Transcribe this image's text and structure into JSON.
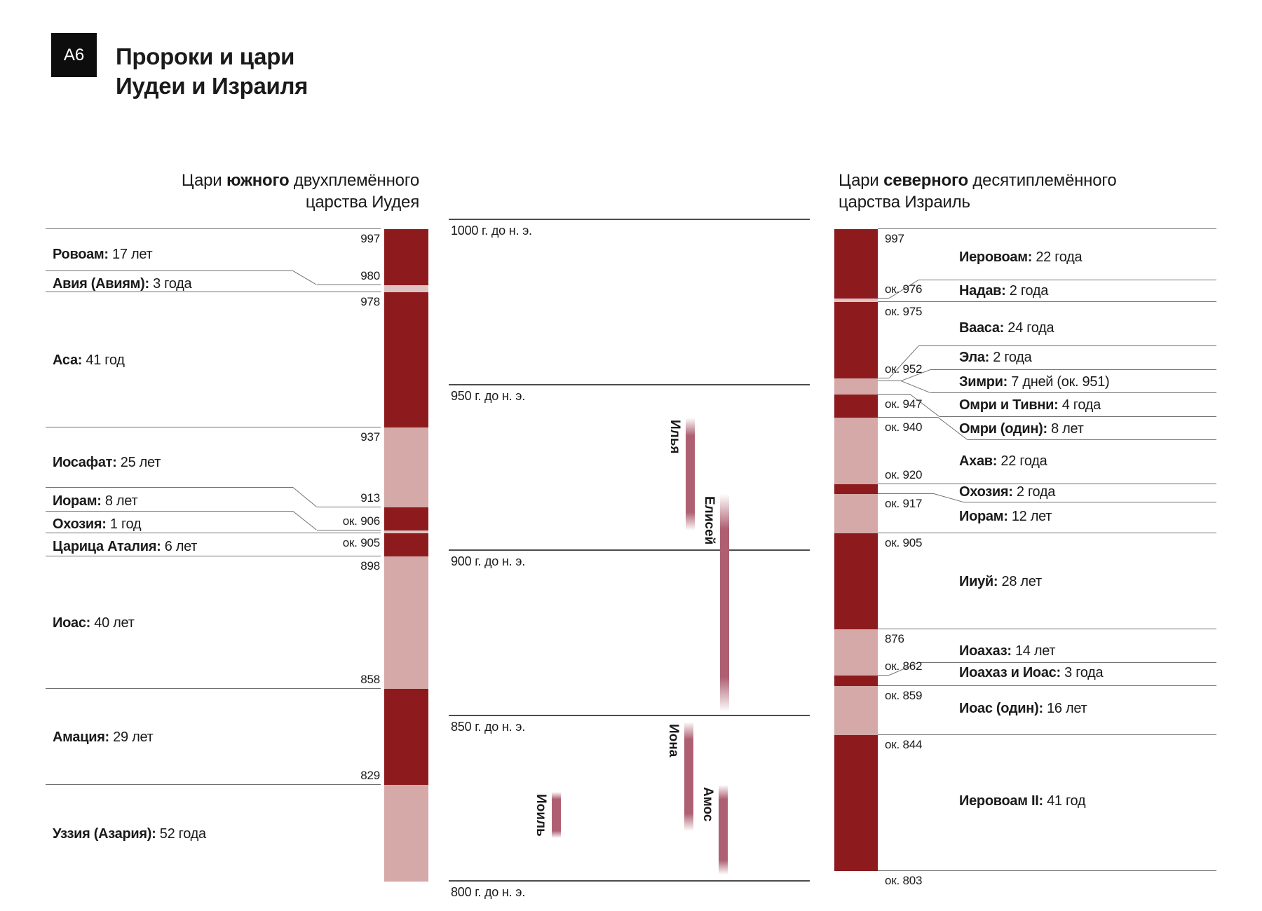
{
  "badge": "А6",
  "title": {
    "line1": "Пророки и цари",
    "line2": "Иудеи и Израиля"
  },
  "judah": {
    "header": {
      "pre": "Цари ",
      "bold": "южного",
      "post": " двухплемённого",
      "line2": "царства Иудея"
    },
    "kings": [
      {
        "name": "Ровоам:",
        "info": "17 лет",
        "year_label": "997",
        "year": 997,
        "end_year": 980,
        "shade": "dark"
      },
      {
        "name": "Авия (Авиям):",
        "info": "3 года",
        "year_label": "980",
        "year": 980,
        "end_year": 978,
        "shade": "light_thin"
      },
      {
        "name": "Аса:",
        "info": "41 год",
        "year_label": "978",
        "year": 978,
        "end_year": 937,
        "shade": "dark"
      },
      {
        "name": "Иосафат:",
        "info": "25 лет",
        "year_label": "937",
        "year": 937,
        "end_year": 913,
        "shade": "light"
      },
      {
        "name": "Иорам:",
        "info": "8 лет",
        "year_label": "913",
        "year": 913,
        "end_year": 906,
        "shade": "dark"
      },
      {
        "name": "Охозия:",
        "info": "1 год",
        "year_label": "ок. 906",
        "year": 906,
        "end_year": 905,
        "shade": "light_thin"
      },
      {
        "name": "Царица Аталия:",
        "info": "6 лет",
        "year_label": "ок. 905",
        "year": 905,
        "end_year": 898,
        "shade": "dark"
      },
      {
        "name": "Иоас:",
        "info": "40 лет",
        "year_label": "898",
        "year": 898,
        "end_year": 858,
        "shade": "light"
      },
      {
        "name": "Амация:",
        "info": "29 лет",
        "year_label": "858",
        "year": 858,
        "end_year": 829,
        "shade": "dark"
      },
      {
        "name": "Уззия (Азария):",
        "info": "52 года",
        "year_label": "829",
        "year": 829,
        "end_year": 800,
        "shade": "light"
      }
    ]
  },
  "israel": {
    "header": {
      "pre": "Цари ",
      "bold": "северного",
      "post": " десятиплемённого",
      "line2": "царства Израиль"
    },
    "kings": [
      {
        "name": "Иеровоам:",
        "info": "22 года",
        "year_label": "997",
        "year": 997,
        "end_year": 976,
        "shade": "dark"
      },
      {
        "name": "Надав:",
        "info": "2 года",
        "year_label": "ок. 976",
        "year": 976,
        "end_year": 975,
        "shade": "light_thin"
      },
      {
        "name": "Вааса:",
        "info": "24 года",
        "year_label": "ок. 975",
        "year": 975,
        "end_year": 952,
        "shade": "dark"
      },
      {
        "name": "Эла:",
        "info": "2 года",
        "year_label": "ок. 952",
        "year": 952,
        "end_year": 951,
        "shade": "light"
      },
      {
        "name": "Зимри:",
        "info": "7 дней (ок. 951)",
        "year_label": "",
        "year": 951,
        "end_year": 951,
        "shade": "light"
      },
      {
        "name": "Омри и Тивни:",
        "info": "4 года",
        "year_label": "",
        "year": 951,
        "end_year": 947,
        "shade": "light"
      },
      {
        "name": "Омри (один):",
        "info": "8 лет",
        "year_label": "ок. 947",
        "year": 947,
        "end_year": 940,
        "shade": "dark"
      },
      {
        "name": "Ахав:",
        "info": "22 года",
        "year_label": "ок. 940",
        "year": 940,
        "end_year": 920,
        "shade": "light"
      },
      {
        "name": "Охозия:",
        "info": "2 года",
        "year_label": "ок. 920",
        "year": 920,
        "end_year": 917,
        "shade": "dark"
      },
      {
        "name": "Иорам:",
        "info": "12 лет",
        "year_label": "ок. 917",
        "year": 917,
        "end_year": 905,
        "shade": "light"
      },
      {
        "name": "Ииуй:",
        "info": "28 лет",
        "year_label": "ок. 905",
        "year": 905,
        "end_year": 876,
        "shade": "dark"
      },
      {
        "name": "Иоахаз:",
        "info": "14 лет",
        "year_label": "876",
        "year": 876,
        "end_year": 862,
        "shade": "light"
      },
      {
        "name": "Иоахаз и Иоас:",
        "info": "3 года",
        "year_label": "ок. 862",
        "year": 862,
        "end_year": 859,
        "shade": "dark"
      },
      {
        "name": "Иоас (один):",
        "info": "16 лет",
        "year_label": "ок. 859",
        "year": 859,
        "end_year": 844,
        "shade": "light"
      },
      {
        "name": "Иеровоам II:",
        "info": "41 год",
        "year_label": "ок. 844",
        "year": 844,
        "end_year": 803,
        "shade": "dark"
      }
    ],
    "end_year": 803,
    "end_year_label": "ок. 803"
  },
  "timeline": {
    "ticks": [
      {
        "label": "1000 г. до н. э.",
        "year": 1000
      },
      {
        "label": "950 г. до н. э.",
        "year": 950
      },
      {
        "label": "900 г. до н. э.",
        "year": 900
      },
      {
        "label": "850 г. до н. э.",
        "year": 850
      },
      {
        "label": "800 г. до н. э.",
        "year": 800
      }
    ]
  },
  "prophets": [
    {
      "name": "Илья",
      "from_year": 940,
      "to_year": 906
    },
    {
      "name": "Елисей",
      "from_year": 917,
      "to_year": 851
    },
    {
      "name": "Иона",
      "from_year": 848,
      "to_year": 815
    },
    {
      "name": "Иоиль",
      "from_year": 827,
      "to_year": 813
    },
    {
      "name": "Амос",
      "from_year": 829,
      "to_year": 802
    }
  ],
  "colors": {
    "dark": "#8d1b1e",
    "light": "#d4a9a7",
    "light_thin": "#ddc3c1",
    "prophet": "#ae6072",
    "line": "#707070",
    "timeline_line": "#4c4c4c",
    "badge_bg": "#0d0d0d"
  }
}
